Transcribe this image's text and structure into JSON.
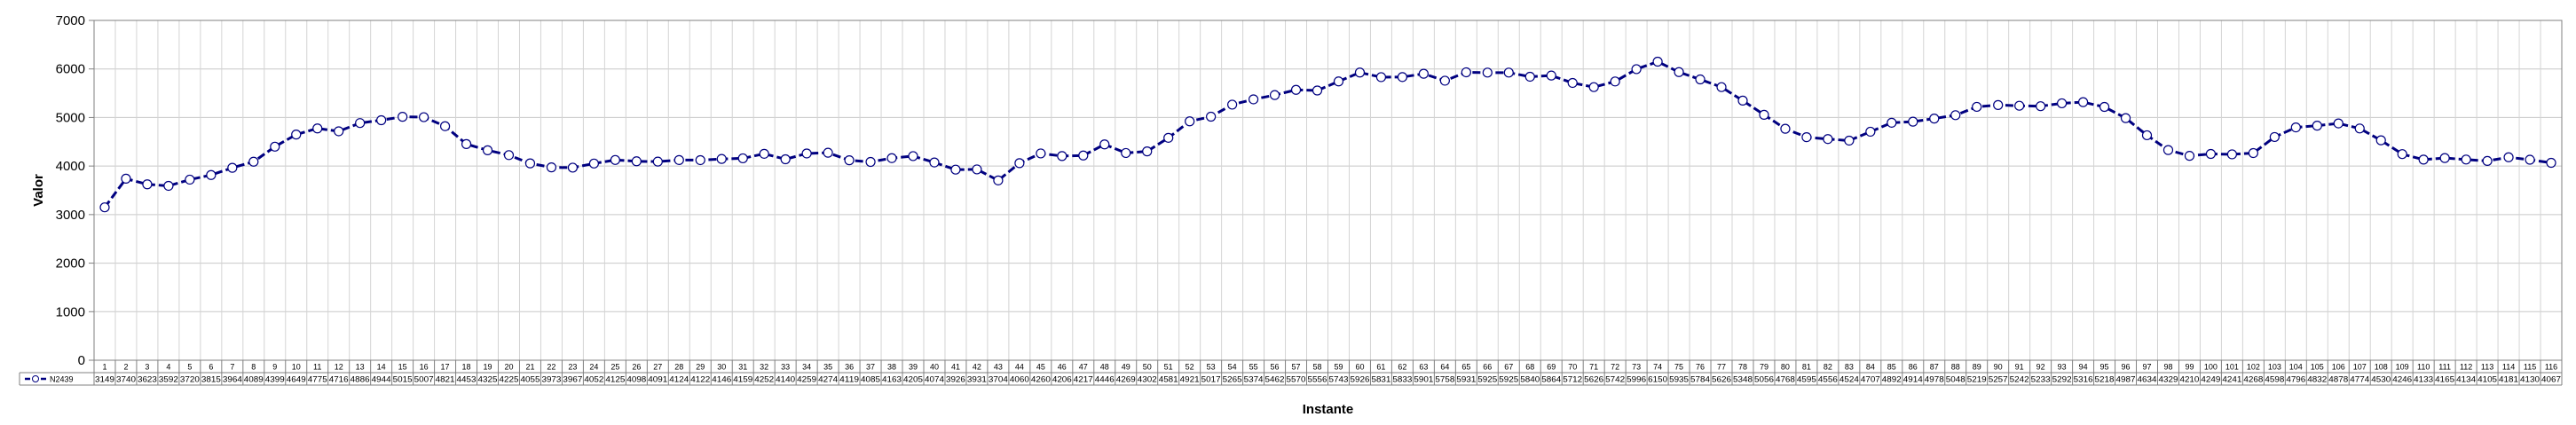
{
  "chart_data": {
    "type": "line",
    "title": "",
    "xlabel": "Instante",
    "ylabel": "Valor",
    "ylim": [
      0,
      7000
    ],
    "yticks": [
      0,
      1000,
      2000,
      3000,
      4000,
      5000,
      6000,
      7000
    ],
    "grid": true,
    "legend": "data-table-left",
    "x": [
      1,
      2,
      3,
      4,
      5,
      6,
      7,
      8,
      9,
      10,
      11,
      12,
      13,
      14,
      15,
      16,
      17,
      18,
      19,
      20,
      21,
      22,
      23,
      24,
      25,
      26,
      27,
      28,
      29,
      30,
      31,
      32,
      33,
      34,
      35,
      36,
      37,
      38,
      39,
      40,
      41,
      42,
      43,
      44,
      45,
      46,
      47,
      48,
      49,
      50,
      51,
      52,
      53,
      54,
      55,
      56,
      57,
      58,
      59,
      60,
      61,
      62,
      63,
      64,
      65,
      66,
      67,
      68,
      69,
      70,
      71,
      72,
      73,
      74,
      75,
      76,
      77,
      78,
      79,
      80,
      81,
      82,
      83,
      84,
      85,
      86,
      87,
      88,
      89,
      90,
      91,
      92,
      93,
      94,
      95,
      96,
      97,
      98,
      99,
      100,
      101,
      102,
      103,
      104,
      105,
      106,
      107,
      108,
      109,
      110,
      111,
      112,
      113,
      114,
      115,
      116
    ],
    "series": [
      {
        "name": "N2439",
        "color": "#000080",
        "values": [
          3149,
          3740,
          3623,
          3592,
          3720,
          3815,
          3964,
          4089,
          4399,
          4649,
          4775,
          4716,
          4886,
          4944,
          5015,
          5007,
          4821,
          4453,
          4325,
          4225,
          4055,
          3973,
          3967,
          4052,
          4125,
          4098,
          4091,
          4124,
          4122,
          4146,
          4159,
          4252,
          4140,
          4259,
          4274,
          4119,
          4085,
          4163,
          4205,
          4074,
          3926,
          3931,
          3704,
          4060,
          4260,
          4206,
          4217,
          4446,
          4269,
          4302,
          4581,
          4921,
          5017,
          5265,
          5374,
          5462,
          5570,
          5556,
          5743,
          5926,
          5831,
          5833,
          5901,
          5758,
          5931,
          5925,
          5925,
          5840,
          5864,
          5712,
          5626,
          5742,
          5996,
          6150,
          5935,
          5784,
          5626,
          5348,
          5056,
          4768,
          4595,
          4556,
          4524,
          4707,
          4892,
          4914,
          4978,
          5048,
          5219,
          5257,
          5242,
          5233,
          5292,
          5316,
          5218,
          4987,
          4634,
          4329,
          4210,
          4249,
          4241,
          4268,
          4598,
          4796,
          4832,
          4878,
          4774,
          4530,
          4246,
          4133,
          4165,
          4134,
          4105,
          4181,
          4130,
          4067
        ]
      }
    ]
  }
}
